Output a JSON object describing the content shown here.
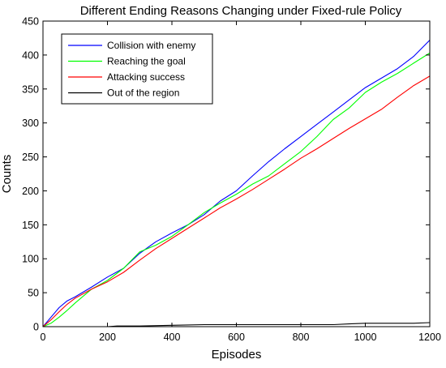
{
  "chart_data": {
    "type": "line",
    "title": "Different Ending Reasons Changing under Fixed-rule Policy",
    "xlabel": "Episodes",
    "ylabel": "Counts",
    "xlim": [
      0,
      1200
    ],
    "ylim": [
      0,
      450
    ],
    "xticks": [
      0,
      200,
      400,
      600,
      800,
      1000,
      1200
    ],
    "yticks": [
      0,
      50,
      100,
      150,
      200,
      250,
      300,
      350,
      400,
      450
    ],
    "grid": false,
    "legend_position": "top-left",
    "series": [
      {
        "name": "Collision with enemy",
        "color": "#0000ff",
        "x": [
          0,
          25,
          50,
          75,
          100,
          150,
          200,
          250,
          300,
          350,
          400,
          450,
          500,
          550,
          600,
          650,
          700,
          750,
          800,
          850,
          900,
          950,
          1000,
          1050,
          1100,
          1150,
          1200
        ],
        "y": [
          0,
          14,
          28,
          38,
          44,
          58,
          73,
          86,
          108,
          125,
          138,
          150,
          165,
          185,
          200,
          222,
          243,
          262,
          280,
          298,
          316,
          334,
          352,
          366,
          380,
          398,
          422
        ]
      },
      {
        "name": "Reaching the goal",
        "color": "#00ff00",
        "x": [
          0,
          25,
          50,
          75,
          100,
          150,
          200,
          250,
          300,
          350,
          400,
          450,
          500,
          550,
          600,
          650,
          700,
          750,
          800,
          850,
          900,
          950,
          1000,
          1050,
          1100,
          1150,
          1200
        ],
        "y": [
          0,
          5,
          14,
          24,
          35,
          55,
          68,
          86,
          110,
          120,
          133,
          150,
          168,
          182,
          195,
          210,
          222,
          240,
          258,
          280,
          305,
          322,
          345,
          360,
          373,
          388,
          403
        ]
      },
      {
        "name": "Attacking success",
        "color": "#ff0000",
        "x": [
          0,
          25,
          50,
          75,
          100,
          150,
          200,
          250,
          300,
          350,
          400,
          450,
          500,
          550,
          600,
          650,
          700,
          750,
          800,
          850,
          900,
          950,
          1000,
          1050,
          1100,
          1150,
          1200
        ],
        "y": [
          0,
          10,
          22,
          33,
          42,
          55,
          66,
          80,
          98,
          115,
          130,
          145,
          160,
          175,
          188,
          202,
          217,
          232,
          248,
          262,
          277,
          292,
          306,
          320,
          338,
          355,
          369
        ]
      },
      {
        "name": "Out of the region",
        "color": "#000000",
        "x": [
          0,
          100,
          200,
          230,
          300,
          400,
          500,
          600,
          700,
          800,
          900,
          950,
          1000,
          1100,
          1150,
          1200
        ],
        "y": [
          0,
          0,
          0,
          1,
          1,
          2,
          3,
          3,
          3,
          3,
          3,
          4,
          5,
          5,
          5,
          6
        ]
      }
    ]
  }
}
